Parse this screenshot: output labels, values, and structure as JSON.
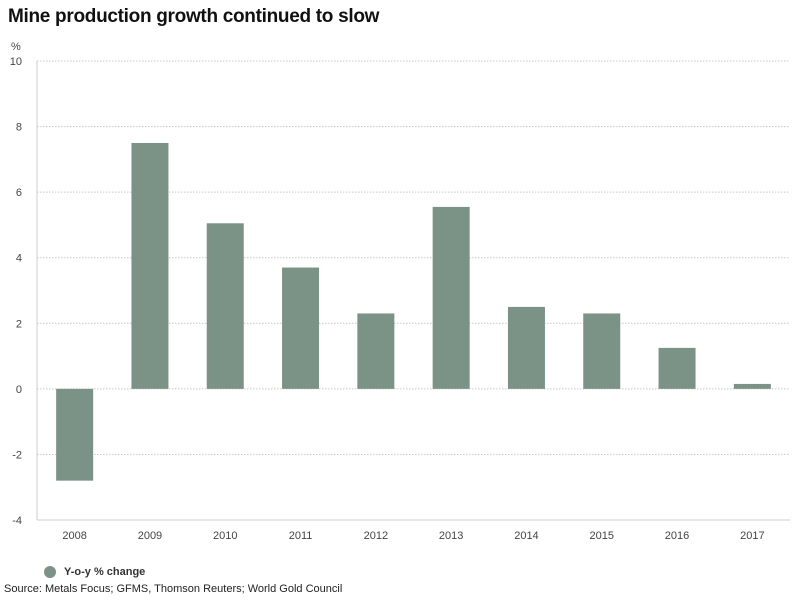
{
  "title": "Mine production growth continued to slow",
  "source": "Source: Metals Focus; GFMS, Thomson Reuters; World Gold Council",
  "colors": {
    "bar": "#7a9386",
    "grid": "#c8c8c8",
    "axis": "#cfcfcf"
  },
  "chart_data": {
    "type": "bar",
    "title": "Mine production growth continued to slow",
    "xlabel": "",
    "ylabel": "%",
    "ylim": [
      -4,
      10
    ],
    "yticks": [
      -4,
      -2,
      0,
      2,
      4,
      6,
      8,
      10
    ],
    "grid": true,
    "legend_position": "bottom-left",
    "categories": [
      "2008",
      "2009",
      "2010",
      "2011",
      "2012",
      "2013",
      "2014",
      "2015",
      "2016",
      "2017"
    ],
    "series": [
      {
        "name": "Y-o-y % change",
        "values": [
          -2.8,
          7.5,
          5.05,
          3.7,
          2.3,
          5.55,
          2.5,
          2.3,
          1.25,
          0.15
        ]
      }
    ]
  }
}
